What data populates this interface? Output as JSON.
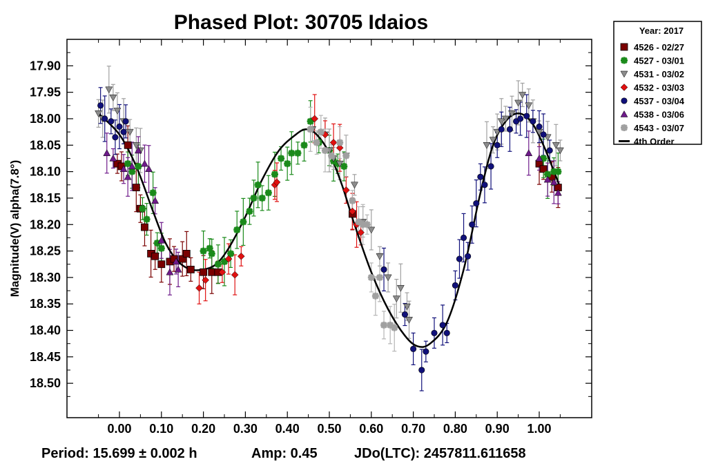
{
  "chart_data": {
    "type": "scatter",
    "title": "Phased Plot: 30705 Idaios",
    "xlabel": "",
    "ylabel": "Magnitude(V) alpha(7.8°)",
    "xlim": [
      -0.125,
      1.125
    ],
    "ylim": [
      17.85,
      18.565
    ],
    "y_inverted": true,
    "x_ticks": [
      0.0,
      0.1,
      0.2,
      0.3,
      0.4,
      0.5,
      0.6,
      0.7,
      0.8,
      0.9,
      1.0
    ],
    "x_tick_labels": [
      "0.00",
      "0.10",
      "0.20",
      "0.30",
      "0.40",
      "0.50",
      "0.60",
      "0.70",
      "0.80",
      "0.90",
      "1.00"
    ],
    "y_ticks": [
      17.9,
      17.95,
      18.0,
      18.05,
      18.1,
      18.15,
      18.2,
      18.25,
      18.3,
      18.35,
      18.4,
      18.45,
      18.5
    ],
    "y_tick_labels": [
      "17.90",
      "17.95",
      "18.00",
      "18.05",
      "18.10",
      "18.15",
      "18.20",
      "18.25",
      "18.30",
      "18.35",
      "18.40",
      "18.45",
      "18.50"
    ],
    "grid": false,
    "legend": {
      "placement": "right-top-outside",
      "header": "Year: 2017",
      "entries": [
        {
          "label": "4526 - 02/27",
          "marker": "square",
          "color": "#7a0000"
        },
        {
          "label": "4527 - 03/01",
          "marker": "star",
          "color": "#1a8a1a"
        },
        {
          "label": "4531 - 03/02",
          "marker": "triangle-down",
          "color": "#8c8c8c"
        },
        {
          "label": "4532 - 03/03",
          "marker": "diamond",
          "color": "#e01010"
        },
        {
          "label": "4537 - 03/04",
          "marker": "circle",
          "color": "#10107a"
        },
        {
          "label": "4538 - 03/06",
          "marker": "triangle-up",
          "color": "#6e1a8a"
        },
        {
          "label": "4543 - 03/07",
          "marker": "star",
          "color": "#a0a0a0"
        },
        {
          "label": "4th Order",
          "marker": "line",
          "color": "#000000"
        }
      ]
    },
    "series": [
      {
        "name": "4526 - 02/27",
        "color": "#7a0000",
        "errcolor": "#7a0000",
        "marker": "square",
        "points": [
          [
            -0.005,
            18.085
          ],
          [
            0.005,
            18.09
          ],
          [
            0.02,
            18.05
          ],
          [
            0.04,
            18.13
          ],
          [
            0.05,
            18.17
          ],
          [
            0.06,
            18.205
          ],
          [
            0.075,
            18.255
          ],
          [
            0.085,
            18.26
          ],
          [
            0.1,
            18.275
          ],
          [
            0.12,
            18.27
          ],
          [
            0.13,
            18.265
          ],
          [
            0.15,
            18.265
          ],
          [
            0.16,
            18.255
          ],
          [
            0.17,
            18.285
          ],
          [
            0.2,
            18.29
          ],
          [
            0.22,
            18.29
          ],
          [
            0.235,
            18.29
          ],
          [
            0.555,
            18.18
          ],
          [
            1.0,
            18.085
          ],
          [
            1.01,
            18.095
          ],
          [
            1.03,
            18.11
          ],
          [
            1.045,
            18.13
          ]
        ]
      },
      {
        "name": "4527 - 03/01",
        "color": "#1a8a1a",
        "errcolor": "#1a8a1a",
        "marker": "star",
        "points": [
          [
            0.02,
            18.085
          ],
          [
            0.03,
            18.1
          ],
          [
            0.045,
            18.09
          ],
          [
            0.055,
            18.17
          ],
          [
            0.065,
            18.19
          ],
          [
            0.08,
            18.14
          ],
          [
            0.09,
            18.235
          ],
          [
            0.1,
            18.245
          ],
          [
            0.2,
            18.25
          ],
          [
            0.215,
            18.245
          ],
          [
            0.22,
            18.255
          ],
          [
            0.235,
            18.275
          ],
          [
            0.25,
            18.27
          ],
          [
            0.265,
            18.255
          ],
          [
            0.28,
            18.21
          ],
          [
            0.295,
            18.195
          ],
          [
            0.31,
            18.175
          ],
          [
            0.32,
            18.15
          ],
          [
            0.33,
            18.125
          ],
          [
            0.34,
            18.15
          ],
          [
            0.355,
            18.14
          ],
          [
            0.37,
            18.105
          ],
          [
            0.385,
            18.075
          ],
          [
            0.4,
            18.085
          ],
          [
            0.41,
            18.065
          ],
          [
            0.425,
            18.065
          ],
          [
            0.44,
            18.05
          ],
          [
            0.455,
            18.005
          ],
          [
            0.475,
            18.045
          ],
          [
            0.5,
            18.06
          ],
          [
            0.51,
            18.08
          ],
          [
            0.52,
            18.085
          ],
          [
            0.535,
            18.09
          ],
          [
            1.01,
            18.075
          ],
          [
            1.02,
            18.105
          ],
          [
            1.035,
            18.1
          ],
          [
            1.045,
            18.1
          ]
        ]
      },
      {
        "name": "4531 - 03/02",
        "color": "#8c8c8c",
        "errcolor": "#a0a0a0",
        "marker": "triangle-down",
        "points": [
          [
            -0.05,
            17.99
          ],
          [
            -0.04,
            18.0
          ],
          [
            -0.025,
            17.945
          ],
          [
            -0.015,
            17.96
          ],
          [
            -0.005,
            17.985
          ],
          [
            0.01,
            18.005
          ],
          [
            0.025,
            18.025
          ],
          [
            0.04,
            18.05
          ],
          [
            0.05,
            18.06
          ],
          [
            0.46,
            18.02
          ],
          [
            0.49,
            18.03
          ],
          [
            0.5,
            18.06
          ],
          [
            0.51,
            18.075
          ],
          [
            0.525,
            18.085
          ],
          [
            0.54,
            18.07
          ],
          [
            0.56,
            18.125
          ],
          [
            0.58,
            18.195
          ],
          [
            0.6,
            18.21
          ],
          [
            0.62,
            18.26
          ],
          [
            0.64,
            18.3
          ],
          [
            0.66,
            18.34
          ],
          [
            0.67,
            18.32
          ],
          [
            0.685,
            18.355
          ],
          [
            0.69,
            18.38
          ],
          [
            0.875,
            18.05
          ],
          [
            0.89,
            18.04
          ],
          [
            0.9,
            18.025
          ],
          [
            0.91,
            18.005
          ],
          [
            0.92,
            18.0
          ],
          [
            0.935,
            17.99
          ],
          [
            0.95,
            17.97
          ],
          [
            0.96,
            17.955
          ],
          [
            0.975,
            17.975
          ],
          [
            0.985,
            18.005
          ],
          [
            1.0,
            18.025
          ],
          [
            1.02,
            18.035
          ],
          [
            1.04,
            18.05
          ],
          [
            1.05,
            18.06
          ]
        ]
      },
      {
        "name": "4532 - 03/03",
        "color": "#e01010",
        "errcolor": "#e01010",
        "marker": "diamond",
        "points": [
          [
            0.19,
            18.32
          ],
          [
            0.205,
            18.305
          ],
          [
            0.245,
            18.29
          ],
          [
            0.26,
            18.265
          ],
          [
            0.275,
            18.295
          ],
          [
            0.29,
            18.26
          ],
          [
            0.37,
            18.125
          ],
          [
            0.375,
            18.12
          ],
          [
            0.465,
            18.0
          ],
          [
            0.49,
            18.03
          ],
          [
            0.51,
            18.045
          ],
          [
            0.525,
            18.055
          ],
          [
            0.54,
            18.135
          ],
          [
            0.555,
            18.175
          ],
          [
            0.565,
            18.2
          ],
          [
            0.575,
            18.215
          ]
        ]
      },
      {
        "name": "4537 - 03/04",
        "color": "#10107a",
        "errcolor": "#10107a",
        "marker": "circle",
        "points": [
          [
            -0.045,
            17.975
          ],
          [
            -0.035,
            18.0
          ],
          [
            -0.02,
            18.005
          ],
          [
            -0.01,
            18.035
          ],
          [
            0.0,
            18.015
          ],
          [
            0.01,
            18.025
          ],
          [
            0.015,
            18.005
          ],
          [
            0.63,
            18.285
          ],
          [
            0.68,
            18.37
          ],
          [
            0.7,
            18.435
          ],
          [
            0.72,
            18.475
          ],
          [
            0.73,
            18.44
          ],
          [
            0.75,
            18.405
          ],
          [
            0.77,
            18.39
          ],
          [
            0.78,
            18.405
          ],
          [
            0.8,
            18.315
          ],
          [
            0.81,
            18.265
          ],
          [
            0.82,
            18.225
          ],
          [
            0.83,
            18.26
          ],
          [
            0.84,
            18.2
          ],
          [
            0.85,
            18.16
          ],
          [
            0.86,
            18.11
          ],
          [
            0.87,
            18.125
          ],
          [
            0.885,
            18.09
          ],
          [
            0.9,
            18.05
          ],
          [
            0.91,
            18.02
          ],
          [
            0.93,
            18.02
          ],
          [
            0.945,
            18.005
          ],
          [
            0.955,
            18.0
          ],
          [
            0.97,
            17.995
          ],
          [
            0.985,
            18.005
          ],
          [
            1.0,
            18.015
          ],
          [
            1.01,
            18.03
          ],
          [
            1.025,
            18.06
          ]
        ]
      },
      {
        "name": "4538 - 03/06",
        "color": "#6e1a8a",
        "errcolor": "#6e1a8a",
        "marker": "triangle-up",
        "points": [
          [
            -0.03,
            18.065
          ],
          [
            -0.015,
            18.075
          ],
          [
            0.01,
            18.095
          ],
          [
            0.02,
            18.11
          ],
          [
            0.03,
            18.09
          ],
          [
            0.045,
            18.06
          ],
          [
            0.06,
            18.085
          ],
          [
            0.07,
            18.095
          ],
          [
            0.085,
            18.155
          ],
          [
            0.1,
            18.23
          ],
          [
            0.12,
            18.29
          ],
          [
            0.135,
            18.27
          ],
          [
            0.14,
            18.285
          ],
          [
            0.975,
            18.065
          ],
          [
            1.0,
            18.075
          ],
          [
            1.02,
            18.115
          ],
          [
            1.035,
            18.12
          ],
          [
            1.045,
            18.14
          ]
        ]
      },
      {
        "name": "4543 - 03/07",
        "color": "#a0a0a0",
        "errcolor": "#b4b4b4",
        "marker": "star",
        "points": [
          [
            0.455,
            18.02
          ],
          [
            0.47,
            18.045
          ],
          [
            0.48,
            18.025
          ],
          [
            0.49,
            18.06
          ],
          [
            0.505,
            18.07
          ],
          [
            0.525,
            18.045
          ],
          [
            0.54,
            18.07
          ],
          [
            0.555,
            18.155
          ],
          [
            0.57,
            18.195
          ],
          [
            0.58,
            18.2
          ],
          [
            0.59,
            18.2
          ],
          [
            0.6,
            18.3
          ],
          [
            0.61,
            18.335
          ],
          [
            0.62,
            18.3
          ],
          [
            0.63,
            18.39
          ],
          [
            0.645,
            18.39
          ],
          [
            0.655,
            18.395
          ]
        ]
      }
    ],
    "fit": {
      "name": "4th Order",
      "color": "#000000",
      "points": [
        [
          -0.05,
          17.99
        ],
        [
          0.0,
          18.03
        ],
        [
          0.04,
          18.09
        ],
        [
          0.08,
          18.175
        ],
        [
          0.11,
          18.235
        ],
        [
          0.14,
          18.27
        ],
        [
          0.17,
          18.285
        ],
        [
          0.2,
          18.285
        ],
        [
          0.23,
          18.275
        ],
        [
          0.26,
          18.245
        ],
        [
          0.3,
          18.185
        ],
        [
          0.34,
          18.115
        ],
        [
          0.38,
          18.06
        ],
        [
          0.42,
          18.03
        ],
        [
          0.445,
          18.02
        ],
        [
          0.47,
          18.03
        ],
        [
          0.5,
          18.065
        ],
        [
          0.53,
          18.125
        ],
        [
          0.56,
          18.2
        ],
        [
          0.6,
          18.29
        ],
        [
          0.64,
          18.36
        ],
        [
          0.68,
          18.41
        ],
        [
          0.71,
          18.43
        ],
        [
          0.74,
          18.425
        ],
        [
          0.78,
          18.385
        ],
        [
          0.82,
          18.285
        ],
        [
          0.86,
          18.14
        ],
        [
          0.89,
          18.05
        ],
        [
          0.92,
          18.005
        ],
        [
          0.95,
          17.99
        ],
        [
          0.98,
          18.005
        ],
        [
          1.01,
          18.05
        ],
        [
          1.05,
          18.13
        ]
      ]
    },
    "footer": {
      "period": "Period: 15.699 ± 0.002 h",
      "amp": "Amp: 0.45",
      "epoch": "JDo(LTC): 2457811.611658"
    }
  }
}
